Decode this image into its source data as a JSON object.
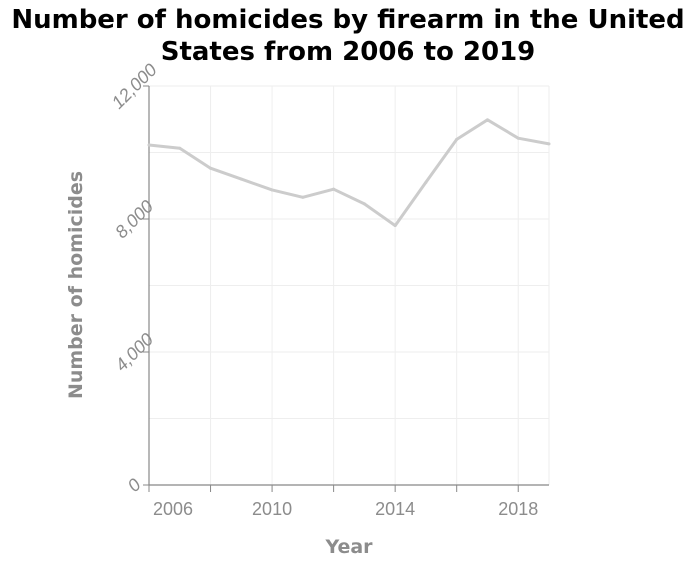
{
  "chart_data": {
    "type": "line",
    "title_lines": [
      "Number of homicides by firearm in the United",
      "States from 2006 to 2019"
    ],
    "xlabel": "Year",
    "ylabel": "Number of homicides",
    "x": [
      2006,
      2007,
      2008,
      2009,
      2010,
      2011,
      2012,
      2013,
      2014,
      2015,
      2016,
      2017,
      2018,
      2019
    ],
    "values": [
      10225,
      10129,
      9528,
      9199,
      8874,
      8653,
      8897,
      8454,
      7803,
      9103,
      10393,
      10982,
      10429,
      10258
    ],
    "xlim": [
      2006,
      2019
    ],
    "ylim": [
      0,
      12000
    ],
    "xticks": [
      2006,
      2010,
      2014,
      2018
    ],
    "xtick_labels": [
      "2006",
      "2010",
      "2014",
      "2018"
    ],
    "yticks": [
      0,
      4000,
      8000,
      12000
    ],
    "ytick_labels": [
      "0",
      "4,000",
      "8,000",
      "12,000"
    ],
    "grid": true,
    "line_color": "#cccccc",
    "axis_color": "#888888",
    "grid_color": "#eeeeee",
    "label_color": "#8c8c8c"
  }
}
